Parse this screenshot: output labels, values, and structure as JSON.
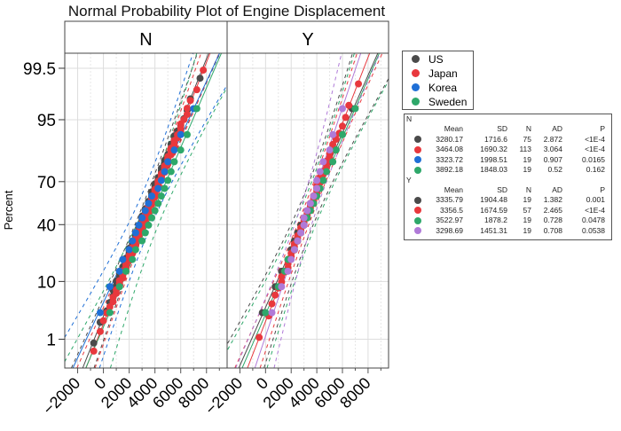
{
  "chart_data": {
    "type": "scatter",
    "title": "Normal Probability Plot of Engine Displacement",
    "ylabel": "Percent",
    "xlabel": "",
    "y_scale": "normal-probability",
    "y_ticks": [
      1,
      10,
      40,
      70,
      95,
      99.5
    ],
    "x_ticks": [
      -2000,
      0,
      2000,
      4000,
      6000,
      8000
    ],
    "xlim": [
      -3000,
      9600
    ],
    "ylim_percent": [
      0.22,
      99.78
    ],
    "grid": true,
    "legend_placement": "right",
    "legend": [
      {
        "name": "US",
        "color": "#4a4a4a"
      },
      {
        "name": "Japan",
        "color": "#e8383d"
      },
      {
        "name": "Korea",
        "color": "#1f6fd6"
      },
      {
        "name": "Sweden",
        "color": "#2ea86a"
      }
    ],
    "panels": [
      {
        "label": "N",
        "stats_header": [
          "Mean",
          "SD",
          "N",
          "AD",
          "P"
        ],
        "series": [
          {
            "color": "#4a4a4a",
            "mean": "3280.17",
            "sd": "1716.6",
            "n": "75",
            "ad": "2.872",
            "p": "<1E-4"
          },
          {
            "color": "#e8383d",
            "mean": "3464.08",
            "sd": "1690.32",
            "n": "113",
            "ad": "3.064",
            "p": "<1E-4"
          },
          {
            "color": "#1f6fd6",
            "mean": "3323.72",
            "sd": "1998.51",
            "n": "19",
            "ad": "0.907",
            "p": "0.0165"
          },
          {
            "color": "#2ea86a",
            "mean": "3892.18",
            "sd": "1848.03",
            "n": "19",
            "ad": "0.52",
            "p": "0.162"
          }
        ]
      },
      {
        "label": "Y",
        "stats_header": [
          "Mean",
          "SD",
          "N",
          "AD",
          "P"
        ],
        "series": [
          {
            "color": "#4a4a4a",
            "mean": "3335.79",
            "sd": "1904.48",
            "n": "19",
            "ad": "1.382",
            "p": "0.001"
          },
          {
            "color": "#e8383d",
            "mean": "3356.5",
            "sd": "1674.59",
            "n": "57",
            "ad": "2.465",
            "p": "<1E-4"
          },
          {
            "color": "#2ea86a",
            "mean": "3522.97",
            "sd": "1878.2",
            "n": "19",
            "ad": "0.728",
            "p": "0.0478"
          },
          {
            "color": "#b07ad8",
            "mean": "3298.69",
            "sd": "1451.31",
            "n": "19",
            "ad": "0.708",
            "p": "0.0538"
          }
        ]
      }
    ]
  }
}
